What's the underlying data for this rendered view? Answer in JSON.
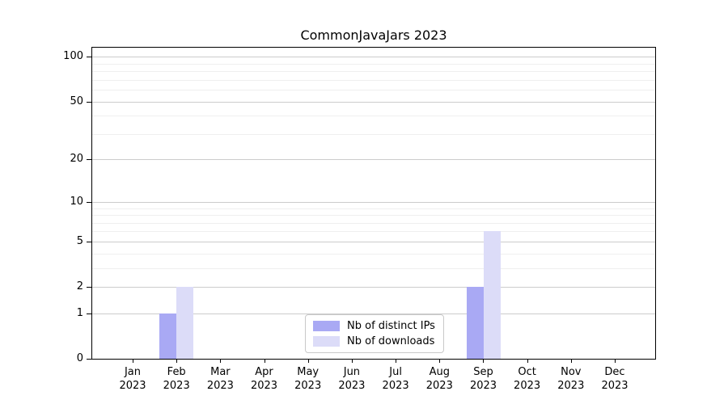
{
  "chart_data": {
    "type": "bar",
    "title": "CommonJavaJars 2023",
    "categories": [
      "Jan",
      "Feb",
      "Mar",
      "Apr",
      "May",
      "Jun",
      "Jul",
      "Aug",
      "Sep",
      "Oct",
      "Nov",
      "Dec"
    ],
    "year_label": "2023",
    "series": [
      {
        "name": "Nb of distinct IPs",
        "color": "#a9a9f4",
        "values": [
          0,
          1,
          0,
          0,
          0,
          0,
          0,
          0,
          2,
          0,
          0,
          0
        ]
      },
      {
        "name": "Nb of downloads",
        "color": "#dcdcf8",
        "values": [
          0,
          2,
          0,
          0,
          0,
          0,
          0,
          0,
          6,
          0,
          0,
          0
        ]
      }
    ],
    "yscale": "log1p",
    "ylim": [
      0,
      115
    ],
    "y_major_ticks": [
      0,
      1,
      2,
      5,
      10,
      20,
      50,
      100
    ],
    "y_minor_ticks": [
      3,
      4,
      6,
      7,
      8,
      9,
      30,
      40,
      60,
      70,
      80,
      90
    ],
    "grid": true,
    "grid_major_color": "#cccccc",
    "grid_minor_color": "#efefef",
    "legend_position": "lower center inside plot",
    "xlabel": "",
    "ylabel": ""
  }
}
